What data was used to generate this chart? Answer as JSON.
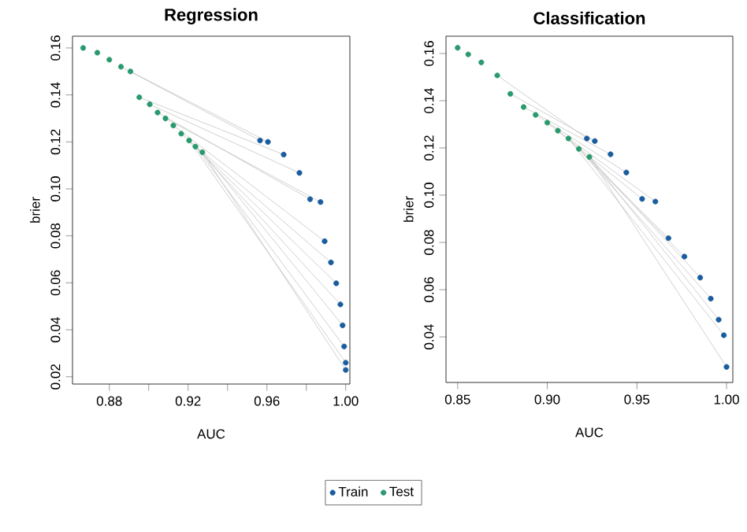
{
  "chart_data": [
    {
      "type": "scatter",
      "title": "Regression",
      "xlabel": "AUC",
      "ylabel": "brier",
      "legend": "bottom",
      "xlim": [
        0.8613,
        1.0021
      ],
      "ylim": [
        0.0169,
        0.165
      ],
      "xticks": [
        {
          "value": 0.88,
          "label": "0.88"
        },
        {
          "value": 0.9,
          "label": null
        },
        {
          "value": 0.92,
          "label": "0.92"
        },
        {
          "value": 0.94,
          "label": null
        },
        {
          "value": 0.96,
          "label": "0.96"
        },
        {
          "value": 0.98,
          "label": null
        },
        {
          "value": 1.0,
          "label": "1.00"
        }
      ],
      "yticks": [
        {
          "value": 0.02,
          "label": "0.02"
        },
        {
          "value": 0.04,
          "label": "0.04"
        },
        {
          "value": 0.06,
          "label": "0.06"
        },
        {
          "value": 0.08,
          "label": "0.08"
        },
        {
          "value": 0.1,
          "label": "0.10"
        },
        {
          "value": 0.12,
          "label": "0.12"
        },
        {
          "value": 0.14,
          "label": "0.14"
        },
        {
          "value": 0.16,
          "label": "0.16"
        }
      ],
      "series": [
        {
          "type": "line",
          "marker": "none",
          "color": "#c4c4c4",
          "x": [
            0.8859,
            0.9565,
            null,
            0.8907,
            0.9605,
            null,
            0.8952,
            0.9685,
            null,
            0.9005,
            0.9765,
            null,
            0.9045,
            0.9819,
            null,
            0.9085,
            0.9872,
            null,
            0.9125,
            0.9893,
            null,
            0.9165,
            0.9925,
            null,
            0.9205,
            0.9952,
            null,
            0.9237,
            0.9973,
            null,
            0.9272,
            0.9984,
            null,
            0.9237,
            0.9992,
            null,
            0.9272,
            1.0,
            null,
            0.9205,
            1.0
          ],
          "values": [
            0.152,
            0.1206,
            null,
            0.15,
            0.12,
            null,
            0.139,
            0.1146,
            null,
            0.136,
            0.1068,
            null,
            0.1325,
            0.0956,
            null,
            0.13,
            0.0944,
            null,
            0.127,
            0.0777,
            null,
            0.1235,
            0.0687,
            null,
            0.1206,
            0.0598,
            null,
            0.118,
            0.0508,
            null,
            0.1156,
            0.0419,
            null,
            0.118,
            0.0329,
            null,
            0.1156,
            0.0229,
            null,
            0.1206,
            0.026
          ]
        },
        {
          "name": "Train",
          "marker": "circle",
          "color": "#1a5d9e",
          "x": [
            0.9565,
            0.9605,
            0.9685,
            0.9765,
            0.9819,
            0.9872,
            0.9893,
            0.9925,
            0.9952,
            0.9973,
            0.9984,
            0.9992,
            1.0,
            1.0
          ],
          "values": [
            0.1206,
            0.12,
            0.1146,
            0.1068,
            0.0956,
            0.0944,
            0.0777,
            0.0687,
            0.0598,
            0.0508,
            0.0419,
            0.0329,
            0.0229,
            0.026
          ]
        },
        {
          "name": "Test",
          "marker": "circle",
          "color": "#2a9a6e",
          "x": [
            0.8667,
            0.8739,
            0.88,
            0.8859,
            0.8907,
            0.8952,
            0.9005,
            0.9045,
            0.9085,
            0.9125,
            0.9165,
            0.9205,
            0.9237,
            0.9272
          ],
          "values": [
            0.16,
            0.158,
            0.155,
            0.152,
            0.15,
            0.139,
            0.136,
            0.1325,
            0.13,
            0.127,
            0.1235,
            0.1206,
            0.118,
            0.1156
          ]
        }
      ]
    },
    {
      "type": "scatter",
      "title": "Classification",
      "xlabel": "AUC",
      "ylabel": "brier",
      "xlim": [
        0.8435,
        1.0035
      ],
      "ylim": [
        0.0207,
        0.1673
      ],
      "xticks": [
        {
          "value": 0.85,
          "label": "0.85"
        },
        {
          "value": 0.9,
          "label": "0.90"
        },
        {
          "value": 0.95,
          "label": "0.95"
        },
        {
          "value": 1.0,
          "label": "1.00"
        }
      ],
      "yticks": [
        {
          "value": 0.04,
          "label": "0.04"
        },
        {
          "value": 0.06,
          "label": "0.06"
        },
        {
          "value": 0.08,
          "label": "0.08"
        },
        {
          "value": 0.1,
          "label": "0.10"
        },
        {
          "value": 0.12,
          "label": "0.12"
        },
        {
          "value": 0.14,
          "label": "0.14"
        },
        {
          "value": 0.16,
          "label": "0.16"
        }
      ],
      "series": [
        {
          "type": "line",
          "marker": "none",
          "color": "#c4c4c4",
          "x": [
            0.8721,
            0.9221,
            null,
            0.8794,
            0.9265,
            null,
            0.8868,
            0.9353,
            null,
            0.8935,
            0.9441,
            null,
            0.9,
            0.9529,
            null,
            0.9059,
            0.9603,
            null,
            0.9118,
            0.9676,
            null,
            0.9176,
            0.9765,
            null,
            0.9235,
            0.9853,
            null,
            0.9176,
            0.9912,
            null,
            0.9235,
            0.9956,
            null,
            0.9118,
            0.9985,
            null,
            0.9235,
            1.0
          ],
          "values": [
            0.1507,
            0.124,
            null,
            0.1429,
            0.1229,
            null,
            0.1373,
            0.1173,
            null,
            0.134,
            0.1096,
            null,
            0.1307,
            0.0984,
            null,
            0.1273,
            0.0973,
            null,
            0.124,
            0.0818,
            null,
            0.1196,
            0.074,
            null,
            0.1162,
            0.0651,
            null,
            0.1196,
            0.0562,
            null,
            0.1162,
            0.0473,
            null,
            0.124,
            0.0407,
            null,
            0.1162,
            0.0273
          ]
        },
        {
          "marker": "circle",
          "color": "#1a5d9e",
          "x": [
            0.9221,
            0.9265,
            0.9353,
            0.9441,
            0.9529,
            0.9603,
            0.9676,
            0.9765,
            0.9853,
            0.9912,
            0.9956,
            0.9985,
            1.0
          ],
          "values": [
            0.124,
            0.1229,
            0.1173,
            0.1096,
            0.0984,
            0.0973,
            0.0818,
            0.074,
            0.0651,
            0.0562,
            0.0473,
            0.0407,
            0.0273
          ]
        },
        {
          "marker": "circle",
          "color": "#2a9a6e",
          "x": [
            0.85,
            0.8559,
            0.8632,
            0.8721,
            0.8794,
            0.8868,
            0.8935,
            0.9,
            0.9059,
            0.9118,
            0.9176,
            0.9235
          ],
          "values": [
            0.1624,
            0.1596,
            0.1562,
            0.1507,
            0.1429,
            0.1373,
            0.134,
            0.1307,
            0.1273,
            0.124,
            0.1196,
            0.1162
          ]
        }
      ]
    }
  ]
}
